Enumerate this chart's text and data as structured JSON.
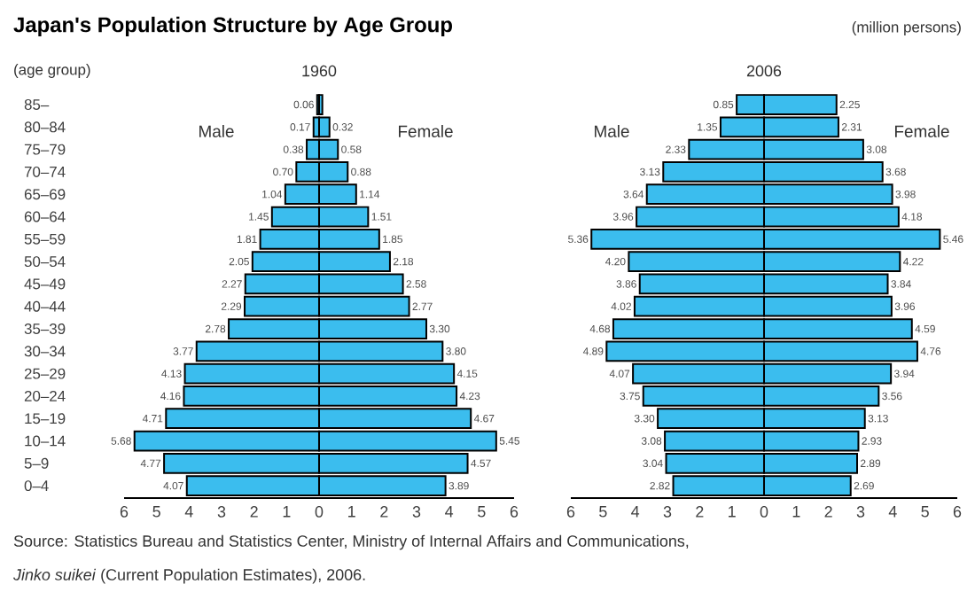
{
  "chart_data": [
    {
      "type": "bar",
      "orientation": "horizontal",
      "title": "Japan's Population Structure by Age Group",
      "subtitle": "1960",
      "ylabel": "(age group)",
      "categories": [
        "85–",
        "80–84",
        "75–79",
        "70–74",
        "65–69",
        "60–64",
        "55–59",
        "50–54",
        "45–49",
        "40–44",
        "35–39",
        "30–34",
        "25–29",
        "20–24",
        "15–19",
        "10–14",
        "5–9",
        "0–4"
      ],
      "series": [
        {
          "name": "Male",
          "color": "#3bbdee",
          "values": [
            0.06,
            0.17,
            0.38,
            0.7,
            1.04,
            1.45,
            1.81,
            2.05,
            2.27,
            2.29,
            2.78,
            3.77,
            4.13,
            4.16,
            4.71,
            5.68,
            4.77,
            4.07
          ],
          "value_labels": [
            "0.06",
            "0.17",
            "0.38",
            "0.70",
            "1.04",
            "1.45",
            "1.81",
            "2.05",
            "2.27",
            "2.29",
            "2.78",
            "3.77",
            "4.13",
            "4.16",
            "4.71",
            "5.68",
            "4.77",
            "4.07"
          ]
        }
      ],
      "xlim": [
        6,
        0
      ],
      "xticks": [
        6,
        5,
        4,
        3,
        2,
        1,
        0
      ],
      "annotations": [
        "Source: Statistics Bureau and Statistics Center, Ministry of Internal Affairs and Communications,",
        "*Jinko suikei* (Current Population Estimates), 2006."
      ]
    },
    {
      "type": "bar",
      "orientation": "horizontal",
      "tick_labels": "x",
      "categories": [
        null,
        null,
        null,
        null,
        null,
        null,
        null,
        null,
        null,
        null,
        null,
        null,
        null,
        null,
        null,
        null,
        null,
        null
      ],
      "series": [
        {
          "name": "Female",
          "color": "#3bbdee",
          "values": [
            0.1,
            0.32,
            0.58,
            0.88,
            1.14,
            1.51,
            1.85,
            2.18,
            2.58,
            2.77,
            3.3,
            3.8,
            4.15,
            4.23,
            4.67,
            5.45,
            4.57,
            3.89
          ],
          "value_labels": [
            null,
            "0.32",
            "0.58",
            "0.88",
            "1.14",
            "1.51",
            "1.85",
            "2.18",
            "2.58",
            "2.77",
            "3.30",
            "3.80",
            "4.15",
            "4.23",
            "4.67",
            "5.45",
            "4.57",
            "3.89"
          ]
        }
      ],
      "xlim": [
        0,
        6
      ],
      "xticks": [
        1,
        2,
        3,
        4,
        5,
        6
      ]
    },
    {
      "type": "bar",
      "orientation": "horizontal",
      "title": "2006",
      "tick_labels": "x",
      "categories": [
        null,
        null,
        null,
        null,
        null,
        null,
        null,
        null,
        null,
        null,
        null,
        null,
        null,
        null,
        null,
        null,
        null,
        null
      ],
      "series": [
        {
          "name": "Male",
          "color": "#3bbdee",
          "values": [
            0.85,
            1.35,
            2.33,
            3.13,
            3.64,
            3.96,
            5.36,
            4.2,
            3.86,
            4.02,
            4.68,
            4.89,
            4.07,
            3.75,
            3.3,
            3.08,
            3.04,
            2.82
          ],
          "value_labels": [
            "0.85",
            "1.35",
            "2.33",
            "3.13",
            "3.64",
            "3.96",
            "5.36",
            "4.20",
            "3.86",
            "4.02",
            "4.68",
            "4.89",
            "4.07",
            "3.75",
            "3.30",
            "3.08",
            "3.04",
            "2.82"
          ]
        }
      ],
      "xlim": [
        6,
        0
      ],
      "xticks": [
        6,
        5,
        4,
        3,
        2,
        1,
        0
      ]
    },
    {
      "type": "bar",
      "orientation": "horizontal",
      "tick_labels": "x",
      "categories": [
        null,
        null,
        null,
        null,
        null,
        null,
        null,
        null,
        null,
        null,
        null,
        null,
        null,
        null,
        null,
        null,
        null,
        null
      ],
      "series": [
        {
          "name": "Female",
          "color": "#3bbdee",
          "values": [
            2.25,
            2.31,
            3.08,
            3.68,
            3.98,
            4.18,
            5.46,
            4.22,
            3.84,
            3.96,
            4.59,
            4.76,
            3.94,
            3.56,
            3.13,
            2.93,
            2.89,
            2.69
          ],
          "value_labels": [
            "2.25",
            "2.31",
            "3.08",
            "3.68",
            "3.98",
            "4.18",
            "5.46",
            "4.22",
            "3.84",
            "3.96",
            "4.59",
            "4.76",
            "3.94",
            "3.56",
            "3.13",
            "2.93",
            "2.89",
            "2.69"
          ]
        }
      ],
      "xlim": [
        0,
        6
      ],
      "xticks": [
        1,
        2,
        3,
        4,
        5,
        6
      ],
      "annotations": [
        "(million persons)"
      ]
    }
  ]
}
